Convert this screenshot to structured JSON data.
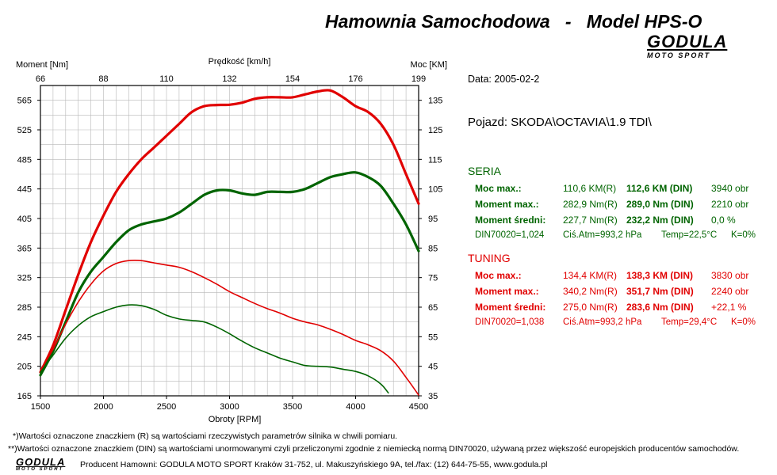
{
  "header": {
    "title": "Hamownia Samochodowa   -   Model HPS-O",
    "logo_main": "GODULA",
    "logo_sub": "MOTO SPORT"
  },
  "info": {
    "date": "Data: 2005-02-2",
    "vehicle": "Pojazd: SKODA\\OCTAVIA\\1.9 TDI\\"
  },
  "seria": {
    "heading": "SERIA",
    "color": "#006400",
    "rows": [
      {
        "label": "Moc max.:",
        "r": "110,6 KM(R)",
        "din": "112,6 KM (DIN)",
        "extra": "3940 obr"
      },
      {
        "label": "Moment max.:",
        "r": "282,9 Nm(R)",
        "din": "289,0 Nm (DIN)",
        "extra": "2210 obr"
      },
      {
        "label": "Moment średni:",
        "r": "227,7 Nm(R)",
        "din": "232,2 Nm (DIN)",
        "extra": "0,0 %"
      }
    ],
    "din_line": {
      "din": "DIN70020=1,024",
      "atm": "Ciś.Atm=993,2 hPa",
      "temp": "Temp=22,5°C",
      "k": "K=0%"
    }
  },
  "tuning": {
    "heading": "TUNING",
    "color": "#e10000",
    "rows": [
      {
        "label": "Moc max.:",
        "r": "134,4 KM(R)",
        "din": "138,3 KM (DIN)",
        "extra": "3830 obr"
      },
      {
        "label": "Moment max.:",
        "r": "340,2 Nm(R)",
        "din": "351,7 Nm (DIN)",
        "extra": "2240 obr"
      },
      {
        "label": "Moment średni:",
        "r": "275,0 Nm(R)",
        "din": "283,6 Nm (DIN)",
        "extra": "+22,1 %"
      }
    ],
    "din_line": {
      "din": "DIN70020=1,038",
      "atm": "Ciś.Atm=993,2 hPa",
      "temp": "Temp=29,4°C",
      "k": "K=0%"
    }
  },
  "footer": {
    "note1": "*)Wartości oznaczone znaczkiem (R) są wartościami rzeczywistych parametrów silnika w chwili pomiaru.",
    "note2": "**)Wartości oznaczone znaczkiem (DIN) są wartościami unormowanymi czyli przeliczonymi zgodnie z niemiecką normą DIN70020, używaną przez większość europejskich producentów samochodów.",
    "producer": "Producent Hamowni: GODULA MOTO SPORT Kraków 31-752, ul. Makuszyńskiego 9A, tel./fax: (12) 644-75-55, www.godula.pl",
    "logo_main": "GODULA",
    "logo_sub": "MOTO SPORT"
  },
  "chart_data": {
    "type": "line",
    "xlabel": "Obroty [RPM]",
    "x2label": "Prędkość [km/h]",
    "ylabel_left": "Moment [Nm]",
    "ylabel_right": "Moc [KM]",
    "xlim": [
      1500,
      4500
    ],
    "ylim_left": [
      165,
      585
    ],
    "ylim_right": [
      35,
      140
    ],
    "x_ticks": [
      "1500",
      "2000",
      "2500",
      "3000",
      "3500",
      "4000",
      "4500"
    ],
    "x2_ticks": [
      "66",
      "88",
      "110",
      "132",
      "154",
      "176",
      "199"
    ],
    "y_left_ticks": [
      "165",
      "205",
      "245",
      "285",
      "325",
      "365",
      "405",
      "445",
      "485",
      "525",
      "565"
    ],
    "y_right_ticks": [
      "35",
      "45",
      "55",
      "65",
      "75",
      "85",
      "95",
      "105",
      "115",
      "125",
      "135"
    ],
    "grid": true,
    "series": [
      {
        "key": "tuning_power",
        "axis": "right",
        "color": "#e10000",
        "width": 3.2,
        "x": [
          1500,
          1600,
          1700,
          1800,
          1900,
          2000,
          2100,
          2200,
          2300,
          2400,
          2500,
          2600,
          2700,
          2800,
          2900,
          3000,
          3100,
          3200,
          3300,
          3400,
          3500,
          3600,
          3700,
          3800,
          3900,
          4000,
          4100,
          4200,
          4300,
          4400,
          4500
        ],
        "y": [
          43,
          52,
          64,
          76,
          87,
          96,
          104,
          110,
          115,
          119,
          123,
          127,
          131,
          133,
          133.4,
          133.5,
          134.2,
          135.5,
          136,
          136,
          136,
          137,
          138,
          138.3,
          136,
          133,
          131,
          127,
          120,
          110,
          100
        ]
      },
      {
        "key": "seria_power",
        "axis": "right",
        "color": "#006400",
        "width": 3.2,
        "x": [
          1500,
          1600,
          1700,
          1800,
          1900,
          2000,
          2100,
          2200,
          2300,
          2400,
          2500,
          2600,
          2700,
          2800,
          2900,
          3000,
          3100,
          3200,
          3300,
          3400,
          3500,
          3600,
          3700,
          3800,
          3900,
          4000,
          4100,
          4200,
          4300,
          4400,
          4500
        ],
        "y": [
          42,
          50,
          60,
          70,
          77,
          82,
          87,
          91,
          93,
          94,
          95,
          97,
          100,
          103,
          104.5,
          104.5,
          103.5,
          103,
          104,
          104,
          104,
          105,
          107,
          109,
          110,
          110.6,
          109,
          106,
          100,
          93,
          84
        ]
      },
      {
        "key": "tuning_torque",
        "axis": "left",
        "color": "#e10000",
        "width": 1.6,
        "x": [
          1500,
          1600,
          1700,
          1800,
          1900,
          2000,
          2100,
          2200,
          2300,
          2400,
          2500,
          2600,
          2700,
          2800,
          2900,
          3000,
          3100,
          3200,
          3300,
          3400,
          3500,
          3600,
          3700,
          3800,
          3900,
          4000,
          4100,
          4200,
          4300,
          4400,
          4500
        ],
        "y": [
          200,
          228,
          262,
          292,
          316,
          334,
          344,
          348,
          348,
          345,
          342,
          339,
          333,
          325,
          316,
          306,
          298,
          290,
          283,
          277,
          270,
          265,
          261,
          255,
          248,
          240,
          234,
          226,
          212,
          190,
          166
        ]
      },
      {
        "key": "seria_torque",
        "axis": "left",
        "color": "#006400",
        "width": 1.6,
        "x": [
          1500,
          1600,
          1700,
          1800,
          1900,
          2000,
          2100,
          2200,
          2300,
          2400,
          2500,
          2600,
          2700,
          2800,
          2900,
          3000,
          3100,
          3200,
          3300,
          3400,
          3500,
          3600,
          3700,
          3800,
          3900,
          4000,
          4100,
          4200,
          4260
        ],
        "y": [
          197,
          220,
          243,
          260,
          272,
          279,
          285,
          288,
          287,
          282,
          274,
          269,
          267,
          265,
          258,
          249,
          239,
          230,
          223,
          216,
          211,
          206,
          205,
          204,
          201,
          198,
          192,
          181,
          169
        ]
      }
    ]
  }
}
